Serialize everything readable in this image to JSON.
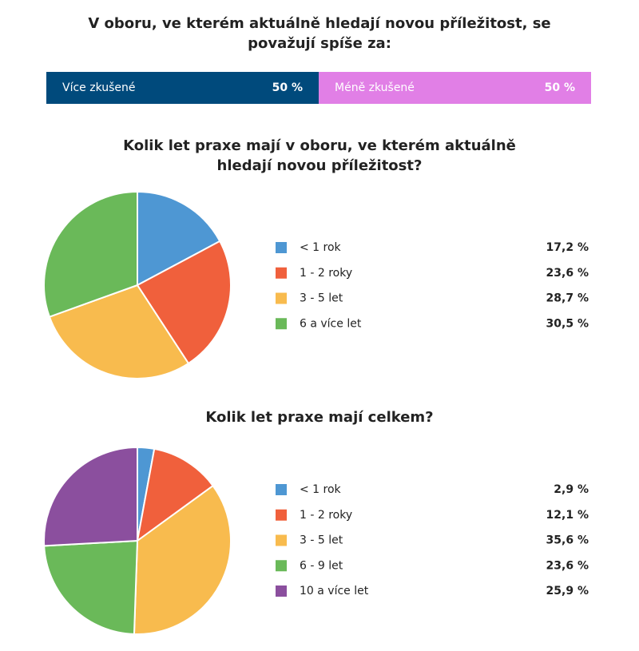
{
  "chart_data": [
    {
      "type": "stackedbar",
      "title": "V oboru, ve kterém aktuálně hledají novou příležitost, se považují spíše za:",
      "series": [
        {
          "name": "Více zkušené",
          "color": "#004a7c",
          "values": [
            50
          ],
          "value_labels": [
            "50 %"
          ]
        },
        {
          "name": "Méně zkušené",
          "color": "#e17fe6",
          "values": [
            50
          ],
          "value_labels": [
            "50 %"
          ]
        }
      ]
    },
    {
      "type": "pie",
      "title": "Kolik let praxe mají v oboru, ve kterém aktuálně hledají novou příležitost?",
      "categories": [
        "< 1 rok",
        "1 - 2 roky",
        "3 - 5 let",
        "6 a více let"
      ],
      "values": [
        17.2,
        23.6,
        28.7,
        30.5
      ],
      "value_labels": [
        "17,2 %",
        "23,6 %",
        "28,7 %",
        "30,5 %"
      ],
      "colors": [
        "#4e97d3",
        "#f0603c",
        "#f8bb4e",
        "#6ab959"
      ]
    },
    {
      "type": "pie",
      "title": "Kolik let praxe mají celkem?",
      "categories": [
        "< 1 rok",
        "1 - 2 roky",
        "3 - 5 let",
        "6 - 9 let",
        "10 a více let"
      ],
      "values": [
        2.9,
        12.1,
        35.6,
        23.6,
        25.9
      ],
      "value_labels": [
        "2,9 %",
        "12,1 %",
        "35,6 %",
        "23,6 %",
        "25,9 %"
      ],
      "colors": [
        "#4e97d3",
        "#f0603c",
        "#f8bb4e",
        "#6ab959",
        "#8b4f9e"
      ]
    }
  ]
}
